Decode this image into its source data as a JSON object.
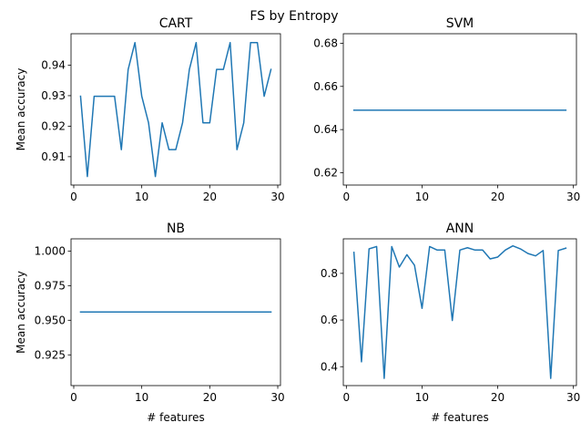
{
  "figure": {
    "suptitle": "FS by Entropy"
  },
  "chart_data": [
    {
      "type": "line",
      "title": "CART",
      "xlabel": "",
      "ylabel": "Mean accuracy",
      "xlim": [
        -0.4,
        30.4
      ],
      "ylim": [
        0.9007,
        0.9503
      ],
      "xticks": [
        0,
        10,
        20,
        30
      ],
      "yticks": [
        0.91,
        0.92,
        0.93,
        0.94
      ],
      "ytick_labels": [
        "0.91",
        "0.92",
        "0.93",
        "0.94"
      ],
      "grid": false,
      "series": [
        {
          "color": "#1f77b4",
          "x": [
            1,
            2,
            3,
            4,
            5,
            6,
            7,
            8,
            9,
            10,
            11,
            12,
            13,
            14,
            15,
            16,
            17,
            18,
            19,
            20,
            21,
            22,
            23,
            24,
            25,
            26,
            27,
            28,
            29
          ],
          "y": [
            0.9298,
            0.9035,
            0.9298,
            0.9298,
            0.9298,
            0.9298,
            0.9123,
            0.9386,
            0.9474,
            0.9298,
            0.9211,
            0.9035,
            0.9211,
            0.9123,
            0.9123,
            0.9211,
            0.9386,
            0.9474,
            0.9211,
            0.9211,
            0.9386,
            0.9386,
            0.9474,
            0.9123,
            0.9211,
            0.9474,
            0.9474,
            0.9298,
            0.9386
          ]
        }
      ]
    },
    {
      "type": "line",
      "title": "SVM",
      "xlabel": "",
      "ylabel": "",
      "xlim": [
        -0.4,
        30.4
      ],
      "ylim": [
        0.6143,
        0.6844
      ],
      "xticks": [
        0,
        10,
        20,
        30
      ],
      "yticks": [
        0.62,
        0.64,
        0.66,
        0.68
      ],
      "ytick_labels": [
        "0.62",
        "0.64",
        "0.66",
        "0.68"
      ],
      "grid": false,
      "series": [
        {
          "color": "#1f77b4",
          "x": [
            1,
            29
          ],
          "y": [
            0.649,
            0.649
          ]
        }
      ]
    },
    {
      "type": "line",
      "title": "NB",
      "xlabel": "# features",
      "ylabel": "Mean accuracy",
      "xlim": [
        -0.4,
        30.4
      ],
      "ylim": [
        0.9028,
        1.0088
      ],
      "xticks": [
        0,
        10,
        20,
        30
      ],
      "yticks": [
        0.925,
        0.95,
        0.975,
        1.0
      ],
      "ytick_labels": [
        "0.925",
        "0.950",
        "0.975",
        "1.000"
      ],
      "grid": false,
      "series": [
        {
          "color": "#1f77b4",
          "x": [
            1,
            29
          ],
          "y": [
            0.956,
            0.956
          ]
        }
      ]
    },
    {
      "type": "line",
      "title": "ANN",
      "xlabel": "# features",
      "ylabel": "",
      "xlim": [
        -0.4,
        30.4
      ],
      "ylim": [
        0.319,
        0.948
      ],
      "xticks": [
        0,
        10,
        20,
        30
      ],
      "yticks": [
        0.4,
        0.6,
        0.8
      ],
      "ytick_labels": [
        "0.4",
        "0.6",
        "0.8"
      ],
      "grid": false,
      "series": [
        {
          "color": "#1f77b4",
          "x": [
            1,
            2,
            3,
            4,
            5,
            6,
            7,
            8,
            9,
            10,
            11,
            12,
            13,
            14,
            15,
            16,
            17,
            18,
            19,
            20,
            21,
            22,
            23,
            24,
            25,
            26,
            27,
            28,
            29
          ],
          "y": [
            0.89,
            0.421,
            0.905,
            0.915,
            0.35,
            0.915,
            0.827,
            0.88,
            0.835,
            0.65,
            0.915,
            0.9,
            0.9,
            0.598,
            0.9,
            0.91,
            0.9,
            0.9,
            0.862,
            0.87,
            0.9,
            0.918,
            0.905,
            0.885,
            0.875,
            0.898,
            0.35,
            0.898,
            0.908
          ]
        }
      ]
    }
  ]
}
